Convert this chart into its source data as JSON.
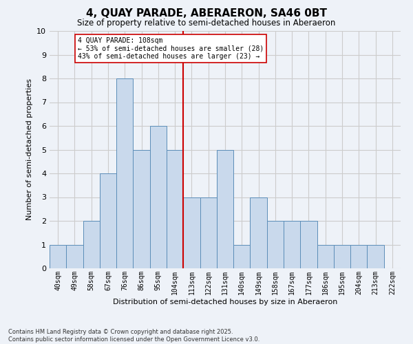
{
  "title": "4, QUAY PARADE, ABERAERON, SA46 0BT",
  "subtitle": "Size of property relative to semi-detached houses in Aberaeron",
  "xlabel": "Distribution of semi-detached houses by size in Aberaeron",
  "ylabel": "Number of semi-detached properties",
  "footer_line1": "Contains HM Land Registry data © Crown copyright and database right 2025.",
  "footer_line2": "Contains public sector information licensed under the Open Government Licence v3.0.",
  "bin_labels": [
    "40sqm",
    "49sqm",
    "58sqm",
    "67sqm",
    "76sqm",
    "86sqm",
    "95sqm",
    "104sqm",
    "113sqm",
    "122sqm",
    "131sqm",
    "140sqm",
    "149sqm",
    "158sqm",
    "167sqm",
    "177sqm",
    "186sqm",
    "195sqm",
    "204sqm",
    "213sqm",
    "222sqm"
  ],
  "counts": [
    1,
    1,
    2,
    4,
    8,
    5,
    6,
    5,
    3,
    3,
    5,
    1,
    3,
    2,
    2,
    2,
    1,
    1,
    1,
    1,
    0
  ],
  "bar_color": "#c9d9ec",
  "bar_edge_color": "#5b8db8",
  "reference_line_x": 7.5,
  "reference_line_color": "#cc0000",
  "annotation_text": "4 QUAY PARADE: 108sqm\n← 53% of semi-detached houses are smaller (28)\n43% of semi-detached houses are larger (23) →",
  "annotation_box_color": "#ffffff",
  "annotation_box_edge_color": "#cc0000",
  "ylim": [
    0,
    10
  ],
  "yticks": [
    0,
    1,
    2,
    3,
    4,
    5,
    6,
    7,
    8,
    9,
    10
  ],
  "grid_color": "#cccccc",
  "background_color": "#eef2f8"
}
